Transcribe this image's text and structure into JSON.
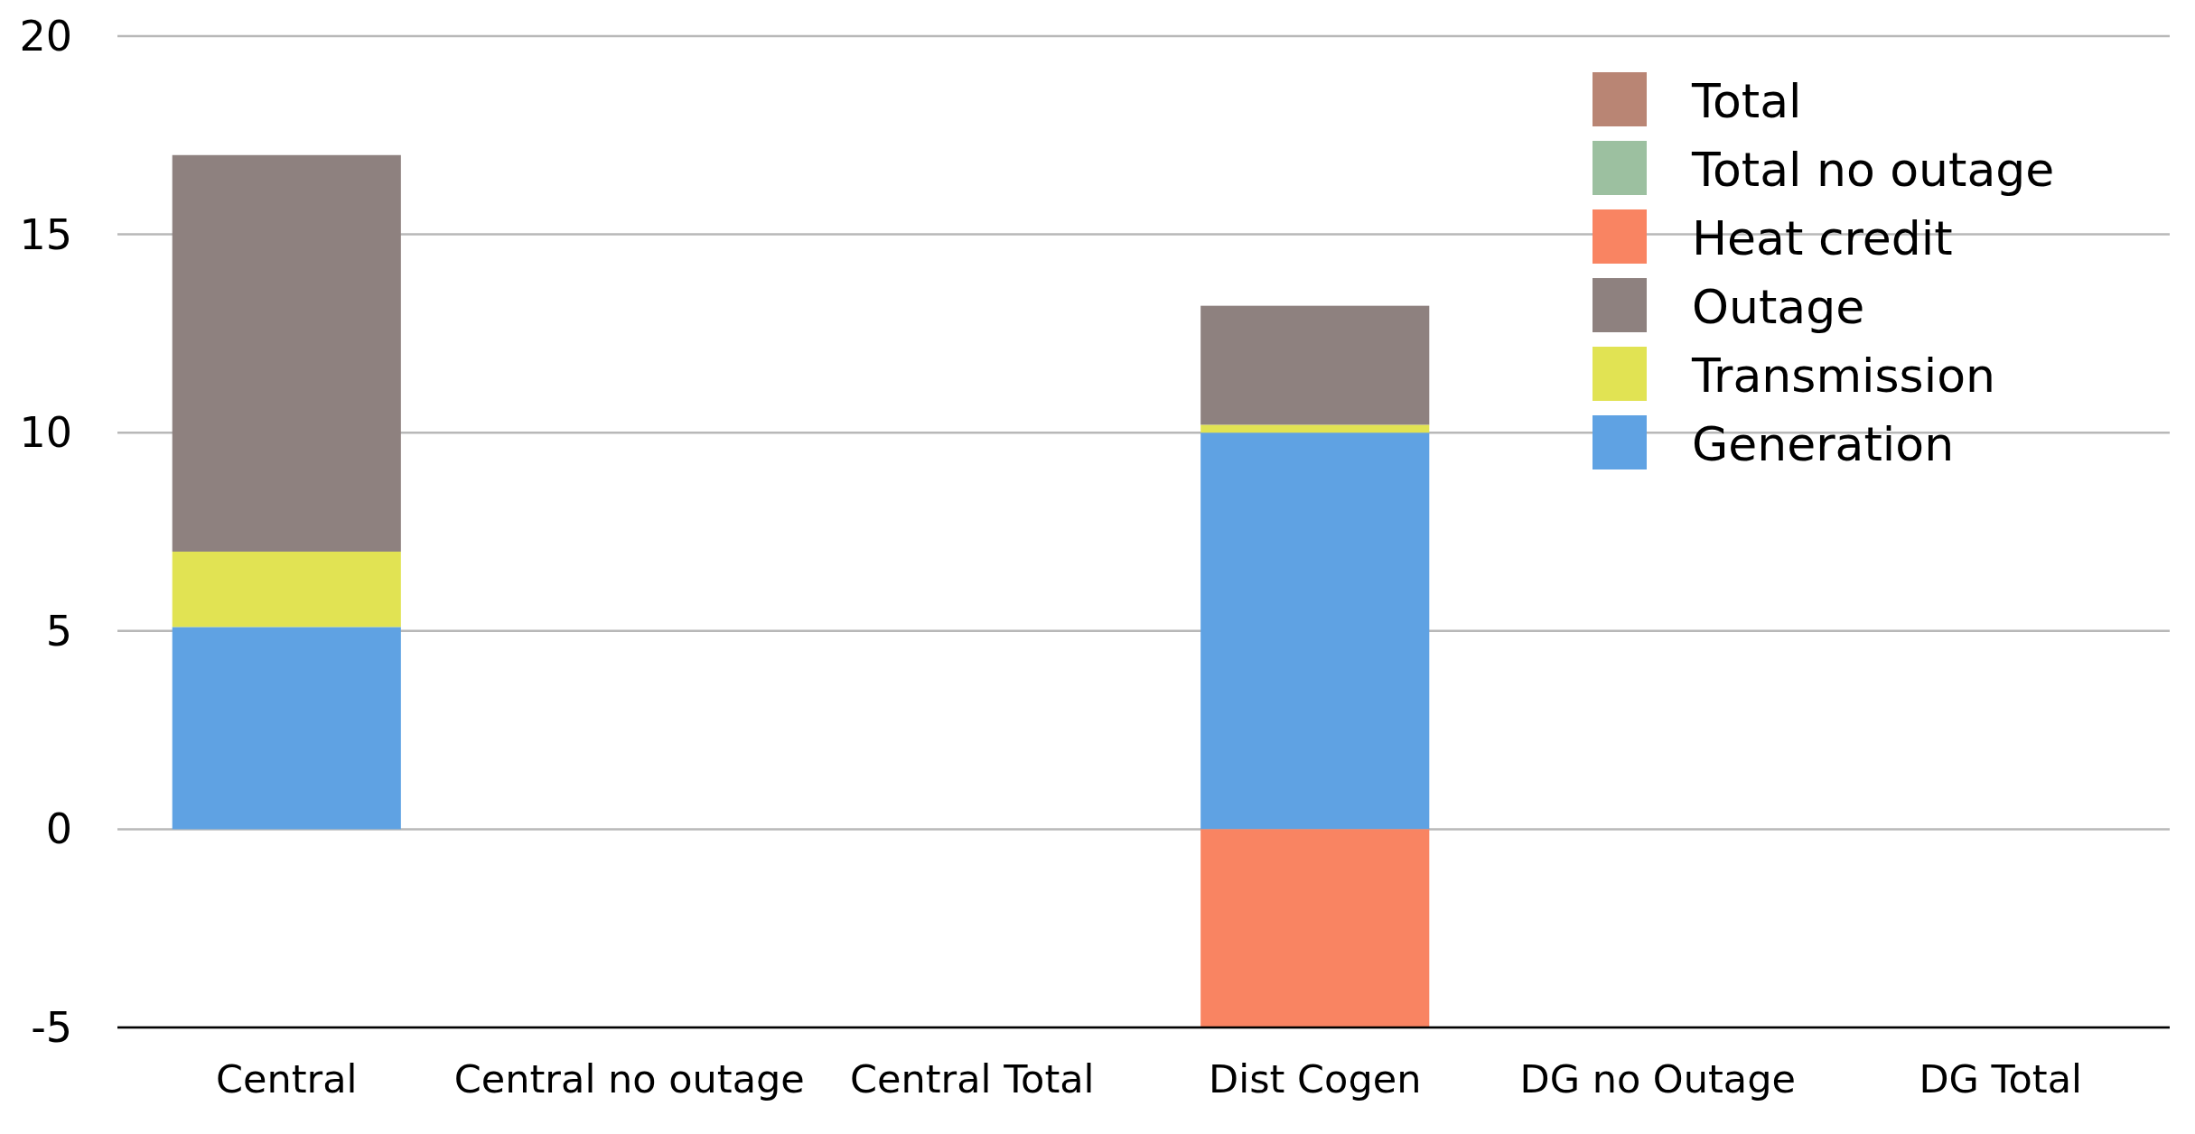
{
  "chart_data": {
    "type": "bar",
    "stacked": true,
    "categories": [
      "Central",
      "Central no outage",
      "Central Total",
      "Dist Cogen",
      "DG no Outage",
      "DG Total"
    ],
    "series": [
      {
        "name": "Generation",
        "color": "#5fa2e3",
        "values": [
          5.1,
          null,
          null,
          10.0,
          null,
          null
        ]
      },
      {
        "name": "Transmission",
        "color": "#e1e353",
        "values": [
          1.9,
          null,
          null,
          0.2,
          null,
          null
        ]
      },
      {
        "name": "Outage",
        "color": "#8e817f",
        "values": [
          10.0,
          null,
          null,
          3.0,
          null,
          null
        ]
      },
      {
        "name": "Heat credit",
        "color": "#f98462",
        "values": [
          null,
          null,
          null,
          -5.0,
          null,
          null
        ]
      },
      {
        "name": "Total no outage",
        "color": "#9cc0a0",
        "values": [
          null,
          null,
          null,
          null,
          null,
          null
        ]
      },
      {
        "name": "Total",
        "color": "#b98574",
        "values": [
          null,
          null,
          null,
          null,
          null,
          null
        ]
      }
    ],
    "ylim": [
      -5,
      20
    ],
    "yticks": [
      -5,
      0,
      5,
      10,
      15,
      20
    ],
    "grid": "y",
    "legend": "top right"
  }
}
